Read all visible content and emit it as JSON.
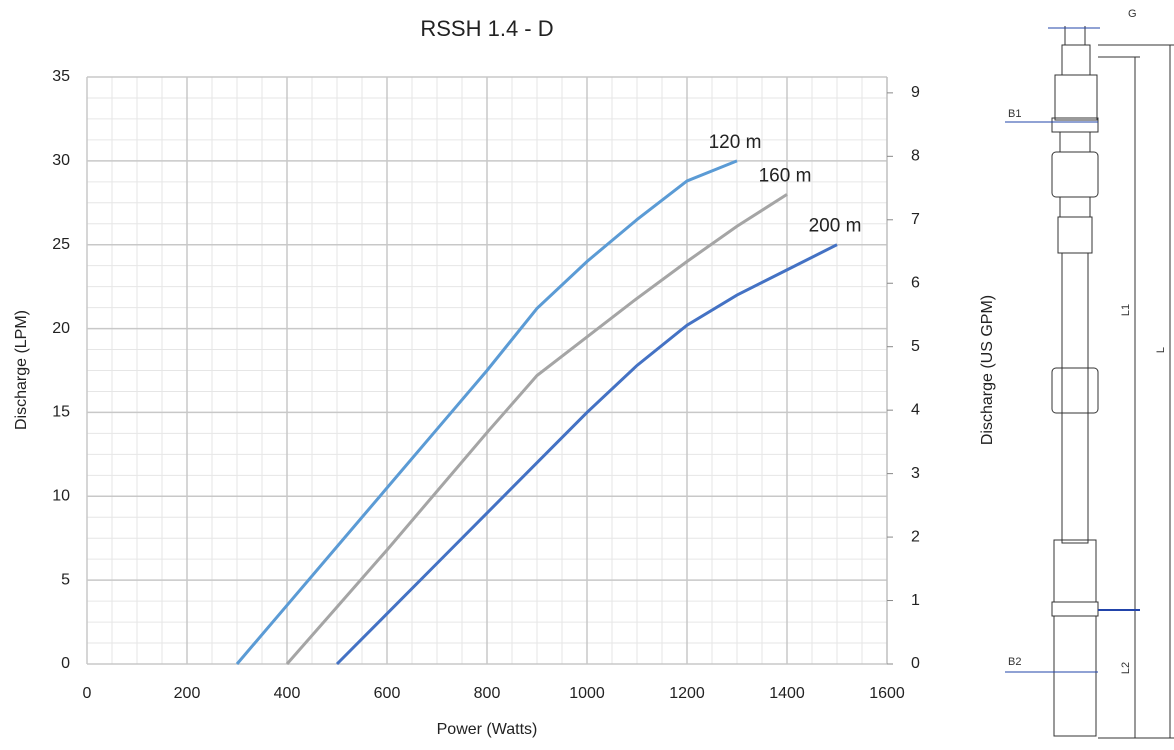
{
  "chart_data": {
    "type": "line",
    "title": "RSSH 1.4 - D",
    "x_label": "Power (Watts)",
    "y_label": "Discharge (LPM)",
    "y2_label": "Discharge (US GPM)",
    "xlim": [
      0,
      1600
    ],
    "xticks": [
      0,
      200,
      400,
      600,
      800,
      1000,
      1200,
      1400,
      1600
    ],
    "ylim": [
      0,
      35
    ],
    "yticks": [
      0,
      5,
      10,
      15,
      20,
      25,
      30,
      35
    ],
    "y2lim": [
      0,
      9.25
    ],
    "y2ticks": [
      0,
      1,
      2,
      3,
      4,
      5,
      6,
      7,
      8,
      9
    ],
    "grid": true,
    "minor_grid": true,
    "series": [
      {
        "name": "120 m",
        "color": "#5b9bd5",
        "x": [
          300,
          400,
          500,
          600,
          700,
          800,
          900,
          1000,
          1100,
          1200,
          1300
        ],
        "values": [
          0,
          3.5,
          7,
          10.5,
          14,
          17.5,
          21.2,
          24,
          26.5,
          28.8,
          30
        ]
      },
      {
        "name": "160 m",
        "color": "#a5a5a5",
        "x": [
          400,
          500,
          600,
          700,
          800,
          900,
          1000,
          1100,
          1200,
          1300,
          1400
        ],
        "values": [
          0,
          3.4,
          6.8,
          10.3,
          13.8,
          17.2,
          19.5,
          21.8,
          24,
          26.1,
          28
        ]
      },
      {
        "name": "200 m",
        "color": "#4472c4",
        "x": [
          500,
          600,
          700,
          800,
          900,
          1000,
          1100,
          1200,
          1300,
          1400,
          1500
        ],
        "values": [
          0,
          3,
          6,
          9,
          12,
          15,
          17.8,
          20.2,
          22,
          23.5,
          25
        ]
      }
    ]
  },
  "diagram": {
    "labels": [
      "G",
      "B1",
      "L1",
      "L",
      "B2",
      "L2"
    ]
  }
}
